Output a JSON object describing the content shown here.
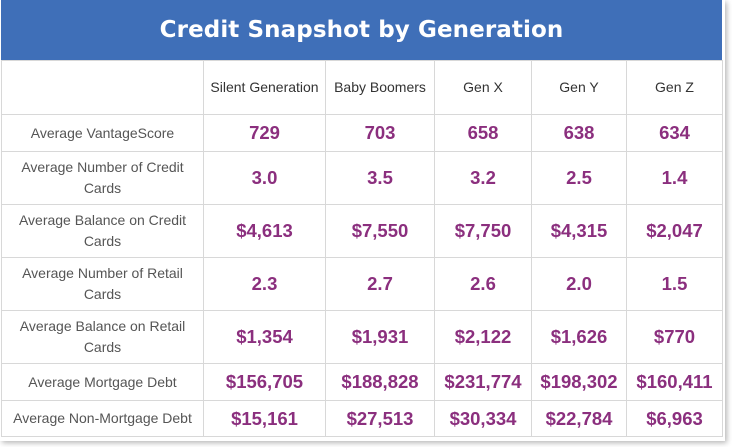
{
  "title": "Credit Snapshot by Generation",
  "table": {
    "corner": "",
    "columns": [
      "Silent Generation",
      "Baby Boomers",
      "Gen X",
      "Gen Y",
      "Gen Z"
    ],
    "rows": [
      {
        "label": "Average VantageScore",
        "values": [
          "729",
          "703",
          "658",
          "638",
          "634"
        ]
      },
      {
        "label": "Average Number of Credit Cards",
        "values": [
          "3.0",
          "3.5",
          "3.2",
          "2.5",
          "1.4"
        ]
      },
      {
        "label": "Average Balance on Credit Cards",
        "values": [
          "$4,613",
          "$7,550",
          "$7,750",
          "$4,315",
          "$2,047"
        ]
      },
      {
        "label": "Average Number of Retail Cards",
        "values": [
          "2.3",
          "2.7",
          "2.6",
          "2.0",
          "1.5"
        ]
      },
      {
        "label": "Average Balance on Retail Cards",
        "values": [
          "$1,354",
          "$1,931",
          "$2,122",
          "$1,626",
          "$770"
        ]
      },
      {
        "label": "Average Mortgage Debt",
        "values": [
          "$156,705",
          "$188,828",
          "$231,774",
          "$198,302",
          "$160,411"
        ]
      },
      {
        "label": "Average Non-Mortgage Debt",
        "values": [
          "$15,161",
          "$27,513",
          "$30,334",
          "$22,784",
          "$6,963"
        ]
      }
    ]
  },
  "colors": {
    "header_background": "#3f6fb8",
    "header_text": "#ffffff",
    "value_text": "#8b2f7e",
    "label_text": "#555555",
    "grid_lines": "#d8d8d8"
  }
}
